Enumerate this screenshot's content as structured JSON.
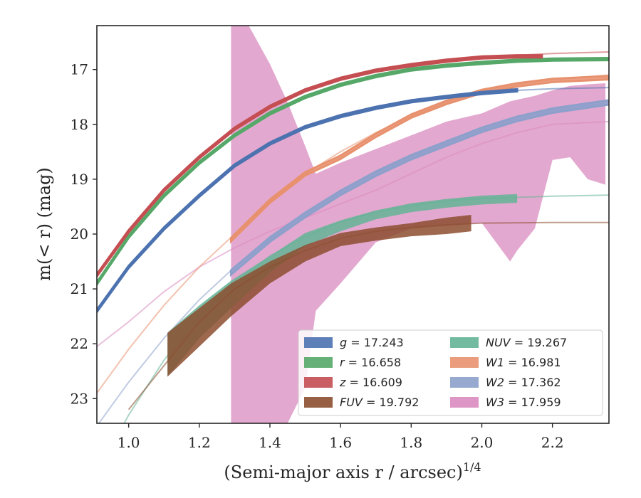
{
  "chart_data": {
    "type": "line",
    "xlabel": "(Semi-major axis r / arcsec)",
    "xlabel_sup": "1/4",
    "ylabel": "m(< r) (mag)",
    "xlim": [
      0.91,
      2.36
    ],
    "ylim": [
      23.45,
      16.2
    ],
    "y_inverted": true,
    "grid": false,
    "legend_position": "lower-right",
    "x_ticks": [
      1.0,
      1.2,
      1.4,
      1.6,
      1.8,
      2.0,
      2.2
    ],
    "x_tick_labels": [
      "1.0",
      "1.2",
      "1.4",
      "1.6",
      "1.8",
      "2.0",
      "2.2"
    ],
    "y_ticks": [
      17,
      18,
      19,
      20,
      21,
      22,
      23
    ],
    "y_tick_labels": [
      "17",
      "18",
      "19",
      "20",
      "21",
      "22",
      "23"
    ],
    "legend": [
      {
        "key": "g",
        "label_prefix": "g",
        "value": "17.243",
        "color": "#4c72b0"
      },
      {
        "key": "r",
        "label_prefix": "r",
        "value": "16.658",
        "color": "#55a868"
      },
      {
        "key": "z",
        "label_prefix": "z",
        "value": "16.609",
        "color": "#c44e52"
      },
      {
        "key": "FUV",
        "label_prefix": "FUV",
        "value": "19.792",
        "color": "#8c4e2f"
      },
      {
        "key": "NUV",
        "label_prefix": "NUV",
        "value": "19.267",
        "color": "#64b496"
      },
      {
        "key": "W1",
        "label_prefix": "W1",
        "value": "16.981",
        "color": "#e8916e"
      },
      {
        "key": "W2",
        "label_prefix": "W2",
        "value": "17.362",
        "color": "#8da0cb"
      },
      {
        "key": "W3",
        "label_prefix": "W3",
        "value": "17.959",
        "color": "#d98bbf"
      }
    ],
    "series": [
      {
        "name": "g = 17.243",
        "band": "g",
        "color": "#4c72b0",
        "model_x": [
          0.91,
          1.0,
          1.1,
          1.2,
          1.3,
          1.4,
          1.5,
          1.6,
          1.7,
          1.8,
          1.9,
          2.0,
          2.1,
          2.2,
          2.36
        ],
        "model_y": [
          21.4,
          20.6,
          19.9,
          19.3,
          18.75,
          18.35,
          18.05,
          17.85,
          17.7,
          17.58,
          17.5,
          17.43,
          17.38,
          17.35,
          17.33
        ],
        "data_x": [
          0.91,
          1.0,
          1.1,
          1.2,
          1.3,
          1.4,
          1.5,
          1.6,
          1.7,
          1.8,
          1.9,
          2.0,
          2.1
        ],
        "data_y": [
          21.4,
          20.6,
          19.9,
          19.3,
          18.75,
          18.35,
          18.05,
          17.85,
          17.7,
          17.58,
          17.5,
          17.43,
          17.38
        ],
        "data_err": [
          0.02,
          0.02,
          0.02,
          0.02,
          0.02,
          0.02,
          0.02,
          0.02,
          0.02,
          0.02,
          0.02,
          0.02,
          0.02
        ]
      },
      {
        "name": "r = 16.658",
        "band": "r",
        "color": "#55a868",
        "model_x": [
          0.91,
          1.0,
          1.1,
          1.2,
          1.3,
          1.4,
          1.5,
          1.6,
          1.7,
          1.8,
          1.9,
          2.0,
          2.1,
          2.2,
          2.36
        ],
        "model_y": [
          20.9,
          20.05,
          19.3,
          18.7,
          18.2,
          17.8,
          17.5,
          17.28,
          17.12,
          17.0,
          16.93,
          16.88,
          16.84,
          16.82,
          16.81
        ],
        "data_x": [
          0.91,
          1.0,
          1.1,
          1.2,
          1.3,
          1.4,
          1.5,
          1.6,
          1.7,
          1.8,
          1.9,
          2.0,
          2.1,
          2.2,
          2.36
        ],
        "data_y": [
          20.9,
          20.05,
          19.3,
          18.7,
          18.2,
          17.8,
          17.5,
          17.28,
          17.12,
          17.0,
          16.93,
          16.88,
          16.84,
          16.82,
          16.81
        ],
        "data_err": [
          0.02,
          0.02,
          0.02,
          0.02,
          0.02,
          0.02,
          0.02,
          0.02,
          0.02,
          0.02,
          0.02,
          0.02,
          0.02,
          0.02,
          0.02
        ]
      },
      {
        "name": "z = 16.609",
        "band": "z",
        "color": "#c44e52",
        "model_x": [
          0.91,
          1.0,
          1.1,
          1.2,
          1.3,
          1.4,
          1.5,
          1.6,
          1.7,
          1.8,
          1.9,
          2.0,
          2.1,
          2.2,
          2.36
        ],
        "model_y": [
          20.75,
          19.95,
          19.2,
          18.6,
          18.08,
          17.68,
          17.38,
          17.17,
          17.02,
          16.92,
          16.84,
          16.78,
          16.74,
          16.71,
          16.68
        ],
        "data_x": [
          0.91,
          1.0,
          1.1,
          1.2,
          1.3,
          1.4,
          1.5,
          1.6,
          1.7,
          1.8,
          1.9,
          2.0,
          2.1,
          2.17
        ],
        "data_y": [
          20.75,
          19.95,
          19.2,
          18.6,
          18.08,
          17.68,
          17.38,
          17.17,
          17.02,
          16.92,
          16.84,
          16.78,
          16.76,
          16.76
        ],
        "data_err": [
          0.02,
          0.02,
          0.02,
          0.02,
          0.02,
          0.02,
          0.02,
          0.02,
          0.02,
          0.02,
          0.02,
          0.02,
          0.02,
          0.02
        ]
      },
      {
        "name": "FUV = 19.792",
        "band": "FUV",
        "color": "#8c4e2f",
        "model_x": [
          1.0,
          1.1,
          1.2,
          1.3,
          1.4,
          1.5,
          1.6,
          1.7,
          1.8,
          1.9,
          2.0,
          2.2,
          2.36
        ],
        "model_y": [
          23.2,
          22.4,
          21.6,
          21.0,
          20.6,
          20.3,
          20.08,
          19.95,
          19.88,
          19.83,
          19.8,
          19.79,
          19.79
        ],
        "data_x": [
          1.11,
          1.2,
          1.29,
          1.4,
          1.5,
          1.6,
          1.7,
          1.8,
          1.9,
          1.97
        ],
        "data_y": [
          22.2,
          21.7,
          21.2,
          20.7,
          20.35,
          20.1,
          20.0,
          19.92,
          19.85,
          19.8
        ],
        "data_err": [
          0.4,
          0.35,
          0.3,
          0.2,
          0.15,
          0.12,
          0.12,
          0.12,
          0.15,
          0.15
        ]
      },
      {
        "name": "NUV = 19.267",
        "band": "NUV",
        "color": "#64b496",
        "model_x": [
          0.95,
          1.0,
          1.1,
          1.2,
          1.3,
          1.4,
          1.5,
          1.6,
          1.7,
          1.8,
          1.9,
          2.0,
          2.2,
          2.36
        ],
        "model_y": [
          23.9,
          23.3,
          22.3,
          21.5,
          20.9,
          20.4,
          20.05,
          19.78,
          19.6,
          19.48,
          19.4,
          19.35,
          19.31,
          19.29
        ],
        "data_x": [
          1.11,
          1.2,
          1.29,
          1.4,
          1.5,
          1.6,
          1.7,
          1.8,
          1.9,
          2.0,
          2.1
        ],
        "data_y": [
          22.2,
          21.6,
          21.1,
          20.55,
          20.1,
          19.85,
          19.65,
          19.52,
          19.44,
          19.38,
          19.35
        ],
        "data_err": [
          0.4,
          0.3,
          0.25,
          0.15,
          0.12,
          0.1,
          0.08,
          0.08,
          0.08,
          0.08,
          0.08
        ]
      },
      {
        "name": "W1 = 16.981",
        "band": "W1",
        "color": "#e8916e",
        "model_x": [
          0.91,
          1.0,
          1.1,
          1.2,
          1.3,
          1.4,
          1.5,
          1.6,
          1.7,
          1.8,
          1.9,
          2.0,
          2.1,
          2.2,
          2.36
        ],
        "model_y": [
          22.9,
          22.1,
          21.3,
          20.6,
          20.0,
          19.4,
          18.9,
          18.5,
          18.15,
          17.85,
          17.6,
          17.4,
          17.27,
          17.18,
          17.1
        ],
        "data_x": [
          1.29,
          1.4,
          1.5,
          1.6,
          1.7,
          1.8,
          1.9,
          2.0,
          2.1,
          2.2,
          2.36
        ],
        "data_y": [
          20.1,
          19.4,
          18.9,
          18.6,
          18.2,
          17.85,
          17.6,
          17.4,
          17.28,
          17.2,
          17.15
        ],
        "data_err": [
          0.03,
          0.03,
          0.03,
          0.03,
          0.03,
          0.03,
          0.03,
          0.03,
          0.03,
          0.03,
          0.03
        ]
      },
      {
        "name": "W2 = 17.362",
        "band": "W2",
        "color": "#8da0cb",
        "model_x": [
          0.91,
          1.0,
          1.1,
          1.2,
          1.3,
          1.4,
          1.5,
          1.6,
          1.7,
          1.8,
          1.9,
          2.0,
          2.1,
          2.2,
          2.36
        ],
        "model_y": [
          23.5,
          22.7,
          21.9,
          21.2,
          20.6,
          20.1,
          19.65,
          19.25,
          18.9,
          18.6,
          18.35,
          18.1,
          17.9,
          17.75,
          17.6
        ],
        "data_x": [
          1.29,
          1.4,
          1.5,
          1.6,
          1.7,
          1.8,
          1.9,
          2.0,
          2.1,
          2.2,
          2.36
        ],
        "data_y": [
          20.7,
          20.1,
          19.65,
          19.25,
          18.9,
          18.6,
          18.35,
          18.1,
          17.9,
          17.75,
          17.6
        ],
        "data_err": [
          0.04,
          0.04,
          0.04,
          0.04,
          0.04,
          0.04,
          0.04,
          0.04,
          0.04,
          0.04,
          0.04
        ]
      },
      {
        "name": "W3 = 17.959",
        "band": "W3",
        "color": "#d98bbf",
        "model_x": [
          0.91,
          1.0,
          1.1,
          1.2,
          1.3,
          1.4,
          1.5,
          1.6,
          1.7,
          1.8,
          1.9,
          2.0,
          2.1,
          2.2,
          2.36
        ],
        "model_y": [
          22.05,
          21.6,
          21.05,
          20.6,
          20.25,
          19.95,
          19.7,
          19.45,
          19.2,
          18.9,
          18.6,
          18.35,
          18.15,
          18.0,
          17.95
        ],
        "data_x": [
          1.29,
          1.34,
          1.4,
          1.45,
          1.5,
          1.53,
          1.6,
          1.7,
          1.8,
          1.9,
          2.0,
          2.08,
          2.1,
          2.15,
          2.2,
          2.25,
          2.3,
          2.35
        ],
        "data_lower": [
          23.45,
          23.45,
          23.45,
          23.45,
          22.8,
          21.4,
          20.9,
          20.15,
          19.9,
          19.85,
          19.8,
          20.5,
          20.3,
          19.9,
          18.65,
          18.6,
          19.0,
          19.1
        ],
        "data_upper": [
          16.2,
          16.2,
          16.9,
          17.6,
          18.4,
          18.9,
          18.7,
          18.45,
          18.2,
          17.95,
          17.8,
          17.58,
          17.55,
          17.48,
          17.38,
          17.3,
          17.27,
          17.25
        ]
      }
    ]
  }
}
